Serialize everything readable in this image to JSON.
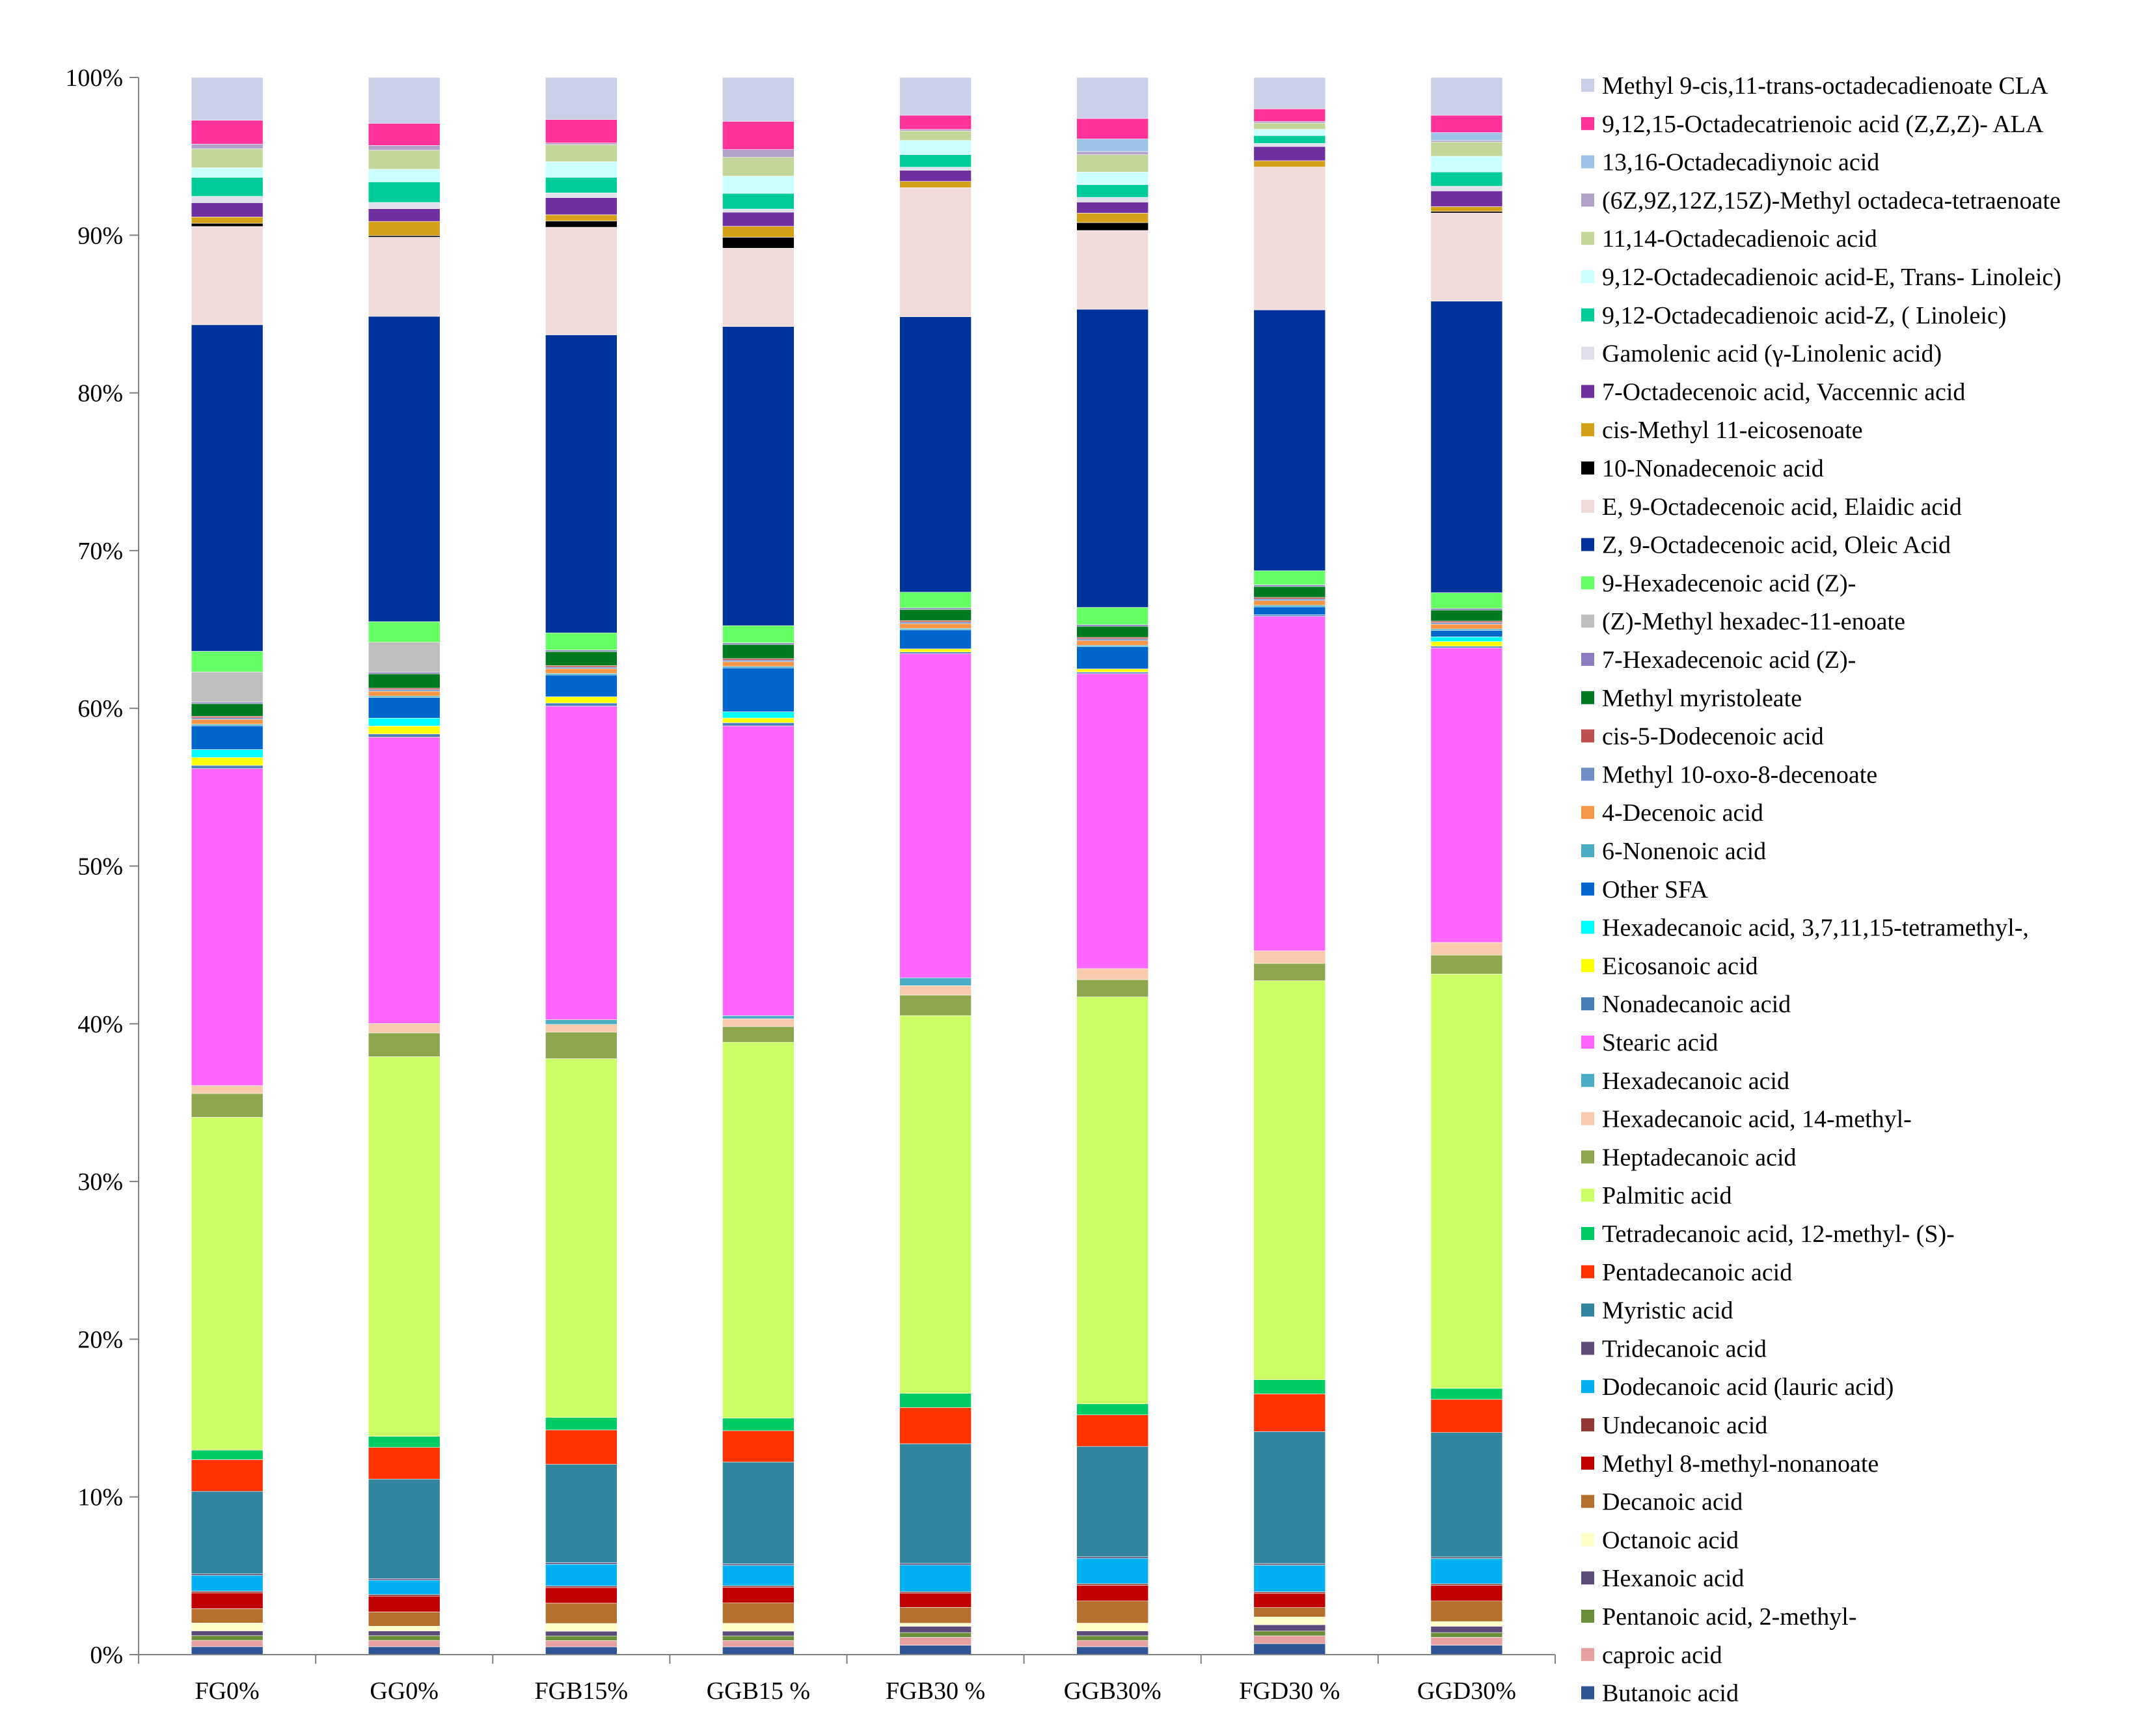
{
  "chart_data": {
    "type": "bar",
    "stacked": "percent",
    "title": "",
    "xlabel": "",
    "ylabel": "",
    "ylim": [
      0,
      100
    ],
    "ytick_labels": [
      "0%",
      "10%",
      "20%",
      "30%",
      "40%",
      "50%",
      "60%",
      "70%",
      "80%",
      "90%",
      "100%"
    ],
    "grid": false,
    "legend_position": "right",
    "categories": [
      "FG0%",
      "GG0%",
      "FGB15%",
      "GGB15 %",
      "FGB30 %",
      "GGB30%",
      "FGD30 %",
      "GGD30%"
    ],
    "series": [
      {
        "name": "Butanoic acid",
        "color": "#2F5597",
        "values": [
          0.5,
          0.5,
          0.5,
          0.5,
          0.6,
          0.5,
          0.7,
          0.6
        ]
      },
      {
        "name": "caproic acid",
        "color": "#E6A0A0",
        "values": [
          0.4,
          0.4,
          0.4,
          0.4,
          0.5,
          0.4,
          0.5,
          0.5
        ]
      },
      {
        "name": "Pentanoic acid, 2-methyl-",
        "color": "#6A8E3A",
        "values": [
          0.3,
          0.3,
          0.3,
          0.3,
          0.3,
          0.3,
          0.3,
          0.3
        ]
      },
      {
        "name": "Hexanoic acid",
        "color": "#5B4A7A",
        "values": [
          0.3,
          0.3,
          0.3,
          0.3,
          0.4,
          0.3,
          0.4,
          0.4
        ]
      },
      {
        "name": "Octanoic acid",
        "color": "#FFFFCC",
        "values": [
          0.5,
          0.3,
          0.5,
          0.5,
          0.2,
          0.5,
          0.5,
          0.3
        ]
      },
      {
        "name": "Decanoic acid",
        "color": "#B5702E",
        "values": [
          0.9,
          0.9,
          1.3,
          1.3,
          1.0,
          1.4,
          0.6,
          1.3
        ]
      },
      {
        "name": "Methyl 8-methyl-nonanoate",
        "color": "#C00000",
        "values": [
          1.0,
          1.0,
          1.0,
          1.0,
          0.9,
          1.0,
          0.9,
          1.0
        ]
      },
      {
        "name": "Undecanoic acid",
        "color": "#953735",
        "values": [
          0.1,
          0.1,
          0.1,
          0.1,
          0.1,
          0.1,
          0.1,
          0.1
        ]
      },
      {
        "name": "Dodecanoic acid (lauric acid)",
        "color": "#00B0F0",
        "values": [
          1.0,
          0.9,
          1.4,
          1.3,
          1.7,
          1.6,
          1.7,
          1.6
        ]
      },
      {
        "name": "Tridecanoic acid",
        "color": "#604A7B",
        "values": [
          0.1,
          0.1,
          0.1,
          0.1,
          0.1,
          0.1,
          0.1,
          0.1
        ]
      },
      {
        "name": "Myristic acid",
        "color": "#31859C",
        "values": [
          5.2,
          6.3,
          6.3,
          6.5,
          7.6,
          7.0,
          8.4,
          7.9
        ]
      },
      {
        "name": "Pentadecanoic acid",
        "color": "#FF3300",
        "values": [
          2.0,
          2.0,
          2.2,
          2.0,
          2.3,
          2.0,
          2.4,
          2.1
        ]
      },
      {
        "name": "Tetradecanoic acid, 12-methyl- (S)-",
        "color": "#00CC66",
        "values": [
          0.6,
          0.7,
          0.8,
          0.8,
          0.9,
          0.7,
          0.9,
          0.7
        ]
      },
      {
        "name": "Palmitic acid",
        "color": "#CCFF66",
        "values": [
          21.0,
          24.0,
          23.0,
          24.0,
          24.0,
          25.8,
          25.4,
          26.3
        ]
      },
      {
        "name": "Heptadecanoic acid",
        "color": "#8EA64E",
        "values": [
          1.5,
          1.5,
          1.7,
          1.0,
          1.3,
          1.1,
          1.1,
          1.2
        ]
      },
      {
        "name": "Hexadecanoic acid, 14-methyl-",
        "color": "#F8CBAD",
        "values": [
          0.5,
          0.6,
          0.5,
          0.5,
          0.6,
          0.7,
          0.8,
          0.8
        ]
      },
      {
        "name": "Hexadecanoic acid",
        "color": "#4BACC6",
        "values": [
          0.0,
          0.0,
          0.3,
          0.2,
          0.5,
          0.0,
          0.0,
          0.0
        ]
      },
      {
        "name": "Stearic acid",
        "color": "#FF66FF",
        "values": [
          20.0,
          18.1,
          20.1,
          18.5,
          20.6,
          18.7,
          21.3,
          18.7
        ]
      },
      {
        "name": "Nonadecanoic acid",
        "color": "#4A7EBB",
        "values": [
          0.2,
          0.2,
          0.2,
          0.2,
          0.1,
          0.1,
          0.1,
          0.1
        ]
      },
      {
        "name": "Eicosanoic acid",
        "color": "#FFFF00",
        "values": [
          0.5,
          0.5,
          0.4,
          0.3,
          0.2,
          0.2,
          0.0,
          0.3
        ]
      },
      {
        "name": "Hexadecanoic acid, 3,7,11,15-tetramethyl-,",
        "color": "#00FFFF",
        "values": [
          0.5,
          0.5,
          0.0,
          0.4,
          0.0,
          0.0,
          0.0,
          0.3
        ]
      },
      {
        "name": "Other SFA",
        "color": "#0066CC",
        "values": [
          1.5,
          1.3,
          1.4,
          2.8,
          1.2,
          1.4,
          0.5,
          0.4
        ]
      },
      {
        "name": "6-Nonenoic acid",
        "color": "#4BACC6",
        "values": [
          0.1,
          0.1,
          0.1,
          0.1,
          0.1,
          0.1,
          0.1,
          0.1
        ]
      },
      {
        "name": "4-Decenoic acid",
        "color": "#F79646",
        "values": [
          0.3,
          0.3,
          0.3,
          0.3,
          0.3,
          0.3,
          0.3,
          0.3
        ]
      },
      {
        "name": "Methyl 10-oxo-8-decenoate",
        "color": "#6F8EC6",
        "values": [
          0.1,
          0.1,
          0.1,
          0.1,
          0.1,
          0.1,
          0.1,
          0.1
        ]
      },
      {
        "name": "cis-5-Dodecenoic acid",
        "color": "#C0504D",
        "values": [
          0.1,
          0.1,
          0.1,
          0.1,
          0.1,
          0.1,
          0.1,
          0.1
        ]
      },
      {
        "name": "Methyl myristoleate",
        "color": "#007A20",
        "values": [
          0.8,
          0.9,
          0.9,
          0.9,
          0.7,
          0.7,
          0.7,
          0.7
        ]
      },
      {
        "name": "7-Hexadecenoic acid (Z)-",
        "color": "#8E7CC3",
        "values": [
          0.1,
          0.1,
          0.1,
          0.1,
          0.1,
          0.1,
          0.1,
          0.1
        ]
      },
      {
        "name": "(Z)-Methyl hexadec-11-enoate",
        "color": "#BFBFBF",
        "values": [
          1.9,
          1.9,
          0.0,
          0.0,
          0.0,
          0.0,
          0.0,
          0.0
        ]
      },
      {
        "name": "9-Hexadecenoic acid (Z)-",
        "color": "#66FF66",
        "values": [
          1.3,
          1.3,
          1.1,
          1.1,
          1.0,
          1.1,
          0.9,
          1.0
        ]
      },
      {
        "name": "Z, 9-Octadecenoic acid, Oleic Acid",
        "color": "#003399",
        "values": [
          20.6,
          19.3,
          19.1,
          19.1,
          17.5,
          18.9,
          16.6,
          18.5
        ]
      },
      {
        "name": "E, 9-Octadecenoic acid, Elaidic acid",
        "color": "#F2DCDB",
        "values": [
          6.2,
          5.0,
          6.9,
          5.0,
          8.2,
          5.0,
          9.1,
          5.6
        ]
      },
      {
        "name": "10-Nonadecenoic acid",
        "color": "#000000",
        "values": [
          0.2,
          0.1,
          0.4,
          0.7,
          0.0,
          0.5,
          0.0,
          0.1
        ]
      },
      {
        "name": "cis-Methyl 11-eicosenoate",
        "color": "#D4A017",
        "values": [
          0.4,
          0.9,
          0.4,
          0.7,
          0.4,
          0.6,
          0.4,
          0.3
        ]
      },
      {
        "name": "7-Octadecenoic acid, Vaccennic acid",
        "color": "#7030A0",
        "values": [
          0.9,
          0.8,
          1.1,
          0.9,
          0.7,
          0.7,
          0.9,
          1.0
        ]
      },
      {
        "name": "Gamolenic acid (γ-Linolenic acid)",
        "color": "#E0E0EC",
        "values": [
          0.4,
          0.4,
          0.3,
          0.2,
          0.2,
          0.3,
          0.2,
          0.3
        ]
      },
      {
        "name": "9,12-Octadecadienoic acid-Z, ( Linoleic)",
        "color": "#00CC99",
        "values": [
          1.2,
          1.3,
          1.0,
          1.0,
          0.8,
          0.8,
          0.5,
          0.9
        ]
      },
      {
        "name": "9,12-Octadecadienoic acid-E, Trans- Linoleic)",
        "color": "#CCFFFF",
        "values": [
          0.6,
          0.8,
          1.0,
          1.1,
          0.9,
          0.8,
          0.4,
          1.0
        ]
      },
      {
        "name": "11,14-Octadecadienoic acid",
        "color": "#C4D79B",
        "values": [
          1.2,
          1.2,
          1.1,
          1.2,
          0.6,
          1.1,
          0.4,
          0.9
        ]
      },
      {
        "name": "(6Z,9Z,12Z,15Z)-Methyl octadeca-tetraenoate",
        "color": "#B1A0C7",
        "values": [
          0.3,
          0.3,
          0.1,
          0.5,
          0.1,
          0.2,
          0.1,
          0.1
        ]
      },
      {
        "name": "13,16-Octadecadiynoic acid",
        "color": "#9DC3E6",
        "values": [
          0.0,
          0.0,
          0.0,
          0.0,
          0.0,
          0.8,
          0.0,
          0.5
        ]
      },
      {
        "name": "9,12,15-Octadecatrienoic acid (Z,Z,Z)- ALA",
        "color": "#FF3399",
        "values": [
          1.5,
          1.4,
          1.5,
          1.8,
          0.9,
          1.3,
          0.8,
          1.1
        ]
      },
      {
        "name": "Methyl 9-cis,11-trans-octadecadienoate CLA",
        "color": "#C9CFE6",
        "values": [
          2.7,
          2.9,
          2.7,
          2.8,
          2.4,
          2.6,
          2.0,
          2.4
        ]
      }
    ]
  }
}
